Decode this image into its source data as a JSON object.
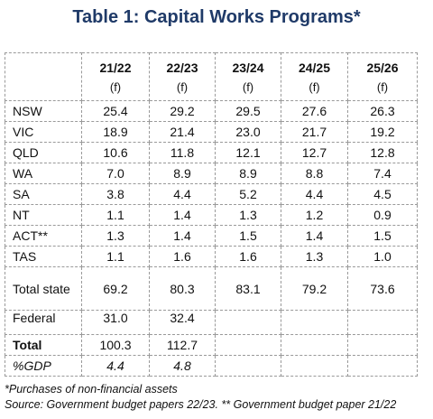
{
  "title": "Table 1: Capital Works Programs*",
  "table": {
    "columns": [
      {
        "label": "21/22",
        "note": "(f)"
      },
      {
        "label": "22/23",
        "note": "(f)"
      },
      {
        "label": "23/24",
        "note": "(f)"
      },
      {
        "label": "24/25",
        "note": "(f)"
      },
      {
        "label": "25/26",
        "note": "(f)"
      }
    ],
    "rows": [
      {
        "label": "NSW",
        "values": [
          "25.4",
          "29.2",
          "29.5",
          "27.6",
          "26.3"
        ]
      },
      {
        "label": "VIC",
        "values": [
          "18.9",
          "21.4",
          "23.0",
          "21.7",
          "19.2"
        ]
      },
      {
        "label": "QLD",
        "values": [
          "10.6",
          "11.8",
          "12.1",
          "12.7",
          "12.8"
        ]
      },
      {
        "label": "WA",
        "values": [
          "7.0",
          "8.9",
          "8.9",
          "8.8",
          "7.4"
        ]
      },
      {
        "label": "SA",
        "values": [
          "3.8",
          "4.4",
          "5.2",
          "4.4",
          "4.5"
        ]
      },
      {
        "label": "NT",
        "values": [
          "1.1",
          "1.4",
          "1.3",
          "1.2",
          "0.9"
        ]
      },
      {
        "label": "ACT**",
        "values": [
          "1.3",
          "1.4",
          "1.5",
          "1.4",
          "1.5"
        ]
      },
      {
        "label": "TAS",
        "values": [
          "1.1",
          "1.6",
          "1.6",
          "1.3",
          "1.0"
        ]
      },
      {
        "label": "Total state",
        "values": [
          "69.2",
          "80.3",
          "83.1",
          "79.2",
          "73.6"
        ]
      },
      {
        "label": "Federal",
        "values": [
          "31.0",
          "32.4"
        ]
      },
      {
        "label": "Total",
        "values": [
          "100.3",
          "112.7"
        ]
      },
      {
        "label": "%GDP",
        "values": [
          "4.4",
          "4.8"
        ]
      }
    ]
  },
  "footnotes": [
    "*Purchases of non-financial assets",
    "Source: Government budget papers 22/23. ** Government budget paper 21/22"
  ]
}
